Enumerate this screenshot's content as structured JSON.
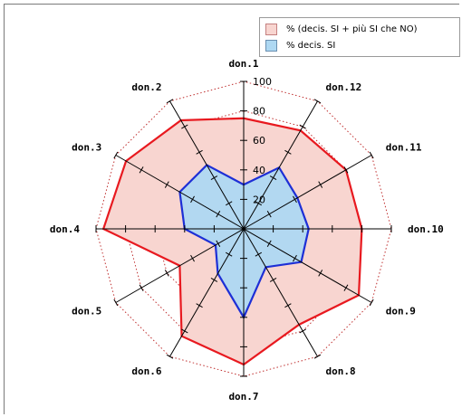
{
  "chart_data": {
    "type": "radar",
    "title": "",
    "categories": [
      "don.1",
      "don.2",
      "don.3",
      "don.4",
      "don.5",
      "don.6",
      "don.7",
      "don.8",
      "don.9",
      "don.10",
      "don.11",
      "don.12"
    ],
    "rlim": [
      0,
      100
    ],
    "ticks": [
      "20",
      "40",
      "60",
      "80",
      "100"
    ],
    "grid": true,
    "legend_placement": "top-right",
    "series": [
      {
        "name": "% (decis. SI + più SI che NO)",
        "values": [
          75,
          85,
          92,
          95,
          50,
          84,
          92,
          75,
          90,
          80,
          80,
          77
        ],
        "stroke": "#e8191f",
        "fill": "#f8d5d0"
      },
      {
        "name": "% decis. SI",
        "values": [
          30,
          50,
          50,
          40,
          22,
          35,
          60,
          30,
          45,
          44,
          42,
          48
        ],
        "stroke": "#1d2fd6",
        "fill": "#aed8f2"
      }
    ]
  },
  "colors": {
    "axis": "#000000",
    "grid": "#c03030",
    "frame": "#7a7a7a"
  }
}
